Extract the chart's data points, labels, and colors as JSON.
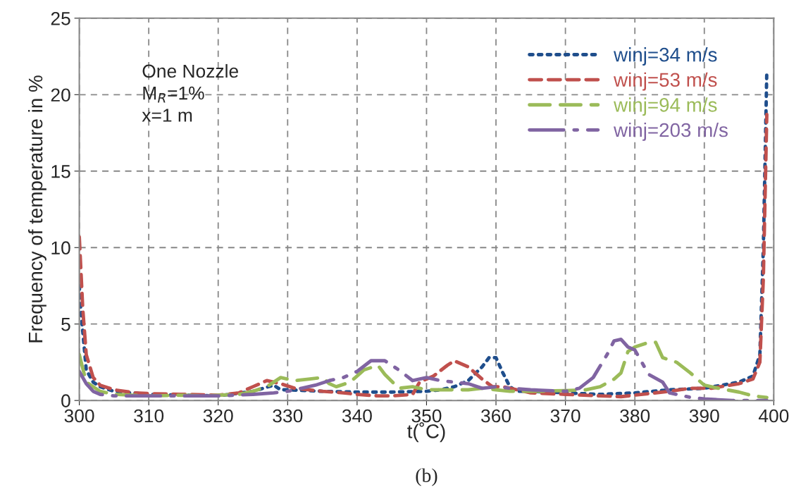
{
  "chart_data": {
    "type": "line",
    "xlabel": "t(˚C)",
    "ylabel": "Frequency of temperature in %",
    "annotations": [
      "One Nozzle\nM$_{R}$=1%\nx=1 m",
      "(b)"
    ],
    "xlim": [
      300,
      400
    ],
    "ylim": [
      0,
      25
    ],
    "xticks": [
      300,
      310,
      320,
      330,
      340,
      350,
      360,
      370,
      380,
      390,
      400
    ],
    "yticks": [
      0,
      5,
      10,
      15,
      20,
      25
    ],
    "grid": true,
    "legend": "top right",
    "series": [
      {
        "name": "winj=34 m/s",
        "color": "#1f4e8c",
        "line_style": "dotted",
        "x": [
          300,
          300.2,
          301,
          302,
          303,
          305,
          310,
          320,
          325,
          328,
          329,
          330,
          335,
          340,
          345,
          350,
          352,
          354,
          356,
          358,
          359,
          360,
          361,
          362,
          363,
          365,
          370,
          375,
          380,
          385,
          390,
          395,
          397,
          398,
          398.5,
          399
        ],
        "values": [
          7.5,
          6,
          2,
          1.2,
          0.9,
          0.6,
          0.4,
          0.3,
          0.6,
          1.0,
          0.7,
          0.7,
          0.6,
          0.55,
          0.55,
          0.6,
          0.7,
          0.9,
          1.3,
          2.2,
          2.8,
          2.8,
          1.8,
          0.9,
          0.6,
          0.6,
          0.5,
          0.4,
          0.5,
          0.7,
          0.8,
          1.2,
          1.6,
          3,
          10,
          21.6
        ]
      },
      {
        "name": "winj=53 m/s",
        "color": "#c0504d",
        "line_style": "dashed",
        "x": [
          300,
          300.5,
          301,
          302,
          303,
          305,
          308,
          310,
          315,
          320,
          323,
          325,
          327,
          329,
          331,
          335,
          338,
          340,
          343,
          345,
          348,
          349,
          351,
          353,
          354,
          356,
          358,
          359.5,
          361,
          363,
          365,
          370,
          375,
          378,
          380,
          385,
          388,
          391,
          395,
          397,
          398,
          398.5,
          399
        ],
        "values": [
          10.7,
          6,
          3,
          1.5,
          1.0,
          0.7,
          0.5,
          0.45,
          0.4,
          0.35,
          0.5,
          0.9,
          1.3,
          1.1,
          0.8,
          0.6,
          0.5,
          0.4,
          0.3,
          0.3,
          0.4,
          1.2,
          1.6,
          2.3,
          2.6,
          2.2,
          1.4,
          0.9,
          0.9,
          0.7,
          0.5,
          0.4,
          0.3,
          0.25,
          0.35,
          0.6,
          0.8,
          0.8,
          1.1,
          1.4,
          2.5,
          8,
          18.7
        ]
      },
      {
        "name": "winj=94 m/s",
        "color": "#9bbb59",
        "line_style": "dashed",
        "x": [
          300,
          301,
          303,
          305,
          310,
          315,
          318,
          320,
          323,
          325,
          327,
          329,
          331,
          333,
          335,
          336,
          337,
          339,
          341,
          343,
          344,
          346,
          348,
          350,
          353,
          356,
          358,
          360,
          362,
          365,
          370,
          373,
          375,
          377,
          378,
          379,
          380,
          382,
          383,
          384,
          386,
          388,
          390,
          392,
          395,
          397,
          399
        ],
        "values": [
          3.0,
          1.2,
          0.6,
          0.4,
          0.3,
          0.35,
          0.3,
          0.35,
          0.4,
          0.6,
          0.9,
          1.5,
          1.3,
          1.4,
          1.5,
          1.1,
          0.9,
          1.2,
          2.0,
          2.3,
          1.7,
          0.8,
          0.9,
          0.7,
          0.7,
          0.7,
          0.8,
          0.7,
          0.6,
          0.6,
          0.65,
          0.7,
          0.9,
          1.4,
          1.8,
          3.2,
          3.5,
          3.8,
          3.8,
          2.8,
          2.5,
          1.8,
          1.0,
          0.8,
          0.55,
          0.3,
          0.2
        ]
      },
      {
        "name": "winj=203 m/s",
        "color": "#8064a2",
        "line_style": "dashed",
        "x": [
          300,
          301,
          302,
          303,
          305,
          310,
          315,
          320,
          325,
          328,
          330,
          332,
          334,
          336,
          338,
          340,
          342,
          344,
          346,
          348,
          350,
          352,
          354,
          356,
          358,
          360,
          362,
          365,
          370,
          372,
          374,
          376,
          377,
          378,
          379,
          380,
          381,
          382,
          384,
          385,
          387,
          388,
          390,
          392,
          394,
          399
        ],
        "values": [
          1.9,
          1.1,
          0.6,
          0.4,
          0.3,
          0.3,
          0.3,
          0.3,
          0.4,
          0.5,
          0.6,
          0.8,
          1.0,
          1.3,
          1.5,
          1.9,
          2.6,
          2.6,
          2.0,
          1.3,
          1.5,
          1.3,
          1.2,
          1.1,
          0.8,
          0.9,
          0.8,
          0.7,
          0.6,
          0.8,
          1.5,
          3.0,
          3.9,
          4.0,
          3.5,
          3.3,
          2.5,
          1.7,
          1.2,
          0.5,
          0.3,
          0.2,
          0.1,
          0.05,
          0,
          0
        ]
      }
    ]
  }
}
